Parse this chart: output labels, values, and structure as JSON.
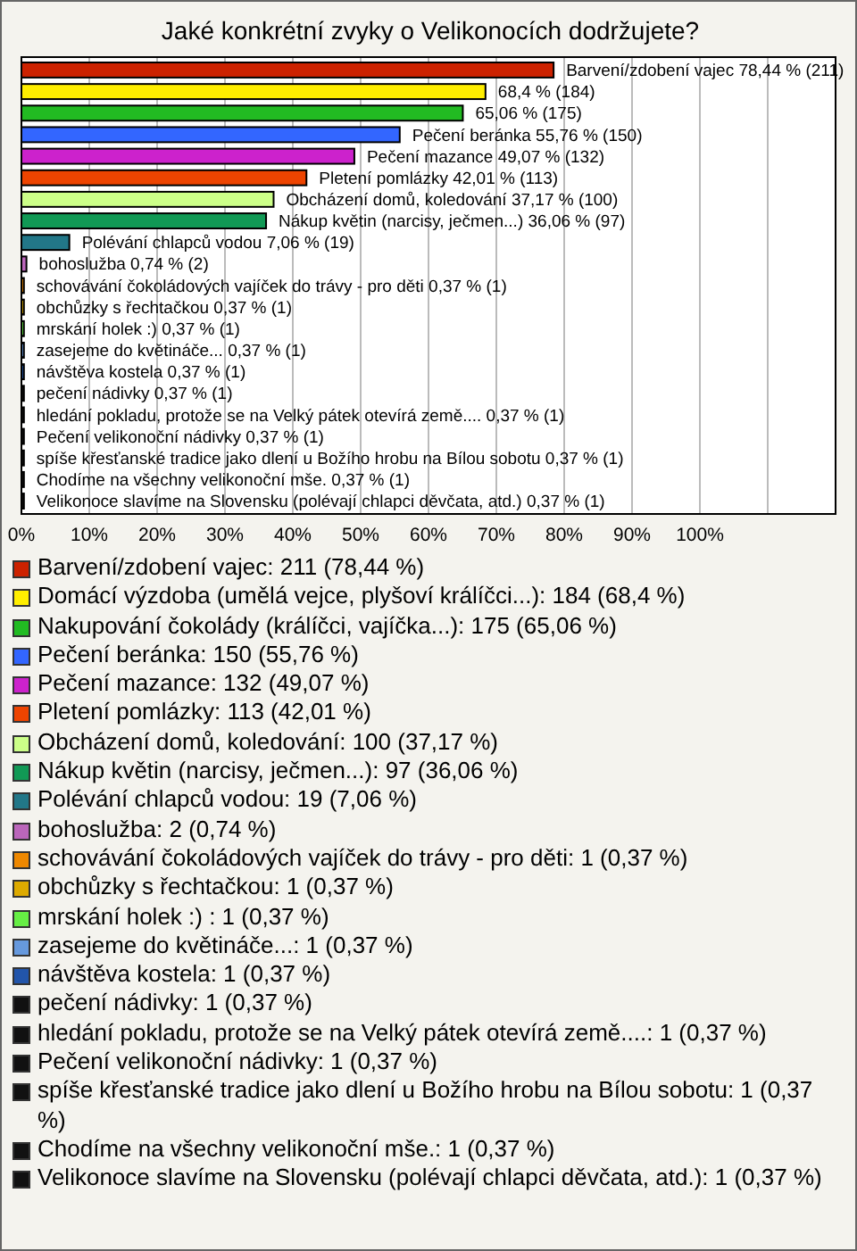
{
  "chart_data": {
    "type": "bar",
    "orientation": "horizontal",
    "title": "Jaké konkrétní zvyky o Velikonocích dodržujete?",
    "categories": [
      null,
      null,
      null,
      null,
      null,
      null,
      null,
      null,
      null,
      null,
      null,
      null,
      null,
      null,
      null,
      null,
      null,
      null,
      null,
      null,
      null
    ],
    "series": [
      {
        "name": "Barvení/zdobení vajec: 211 (78,44 %)",
        "color": "#cc2200",
        "values": [
          78.44,
          null,
          null,
          null,
          null,
          null,
          null,
          null,
          null,
          null,
          null,
          null,
          null,
          null,
          null,
          null,
          null,
          null,
          null,
          null,
          null
        ],
        "value_labels": [
          "Barvení/zdobení vajec 78,44 % (211)",
          null,
          null,
          null,
          null,
          null,
          null,
          null,
          null,
          null,
          null,
          null,
          null,
          null,
          null,
          null,
          null,
          null,
          null,
          null,
          null
        ]
      },
      {
        "name": "Domácí výzdoba (umělá vejce, plyšoví králíčci...): 184 (68,4 %)",
        "color": "#ffee00",
        "values": [
          null,
          68.4,
          null,
          null,
          null,
          null,
          null,
          null,
          null,
          null,
          null,
          null,
          null,
          null,
          null,
          null,
          null,
          null,
          null,
          null,
          null
        ],
        "value_labels": [
          null,
          "68,4 % (184)",
          null,
          null,
          null,
          null,
          null,
          null,
          null,
          null,
          null,
          null,
          null,
          null,
          null,
          null,
          null,
          null,
          null,
          null,
          null
        ]
      },
      {
        "name": "Nakupování čokolády (králíčci, vajíčka...): 175 (65,06 %)",
        "color": "#22bb22",
        "values": [
          null,
          null,
          65.06,
          null,
          null,
          null,
          null,
          null,
          null,
          null,
          null,
          null,
          null,
          null,
          null,
          null,
          null,
          null,
          null,
          null,
          null
        ],
        "value_labels": [
          null,
          null,
          "65,06 % (175)",
          null,
          null,
          null,
          null,
          null,
          null,
          null,
          null,
          null,
          null,
          null,
          null,
          null,
          null,
          null,
          null,
          null,
          null
        ]
      },
      {
        "name": "Pečení beránka: 150 (55,76 %)",
        "color": "#3366ff",
        "values": [
          null,
          null,
          null,
          55.76,
          null,
          null,
          null,
          null,
          null,
          null,
          null,
          null,
          null,
          null,
          null,
          null,
          null,
          null,
          null,
          null,
          null
        ],
        "value_labels": [
          null,
          null,
          null,
          "Pečení beránka 55,76 % (150)",
          null,
          null,
          null,
          null,
          null,
          null,
          null,
          null,
          null,
          null,
          null,
          null,
          null,
          null,
          null,
          null,
          null
        ]
      },
      {
        "name": "Pečení mazance: 132 (49,07 %)",
        "color": "#cc22cc",
        "values": [
          null,
          null,
          null,
          null,
          49.07,
          null,
          null,
          null,
          null,
          null,
          null,
          null,
          null,
          null,
          null,
          null,
          null,
          null,
          null,
          null,
          null
        ],
        "value_labels": [
          null,
          null,
          null,
          null,
          "Pečení mazance 49,07 % (132)",
          null,
          null,
          null,
          null,
          null,
          null,
          null,
          null,
          null,
          null,
          null,
          null,
          null,
          null,
          null,
          null
        ]
      },
      {
        "name": "Pletení pomlázky: 113 (42,01 %)",
        "color": "#ee4400",
        "values": [
          null,
          null,
          null,
          null,
          null,
          42.01,
          null,
          null,
          null,
          null,
          null,
          null,
          null,
          null,
          null,
          null,
          null,
          null,
          null,
          null,
          null
        ],
        "value_labels": [
          null,
          null,
          null,
          null,
          null,
          "Pletení pomlázky 42,01 % (113)",
          null,
          null,
          null,
          null,
          null,
          null,
          null,
          null,
          null,
          null,
          null,
          null,
          null,
          null,
          null
        ]
      },
      {
        "name": "Obcházení domů, koledování: 100 (37,17 %)",
        "color": "#ccff88",
        "values": [
          null,
          null,
          null,
          null,
          null,
          null,
          37.17,
          null,
          null,
          null,
          null,
          null,
          null,
          null,
          null,
          null,
          null,
          null,
          null,
          null,
          null
        ],
        "value_labels": [
          null,
          null,
          null,
          null,
          null,
          null,
          "Obcházení domů, koledování 37,17 % (100)",
          null,
          null,
          null,
          null,
          null,
          null,
          null,
          null,
          null,
          null,
          null,
          null,
          null,
          null
        ]
      },
      {
        "name": "Nákup květin (narcisy, ječmen...): 97 (36,06 %)",
        "color": "#119955",
        "values": [
          null,
          null,
          null,
          null,
          null,
          null,
          null,
          36.06,
          null,
          null,
          null,
          null,
          null,
          null,
          null,
          null,
          null,
          null,
          null,
          null,
          null
        ],
        "value_labels": [
          null,
          null,
          null,
          null,
          null,
          null,
          null,
          "Nákup květin (narcisy, ječmen...) 36,06 % (97)",
          null,
          null,
          null,
          null,
          null,
          null,
          null,
          null,
          null,
          null,
          null,
          null,
          null
        ]
      },
      {
        "name": "Polévání chlapců vodou: 19 (7,06 %)",
        "color": "#227788",
        "values": [
          null,
          null,
          null,
          null,
          null,
          null,
          null,
          null,
          7.06,
          null,
          null,
          null,
          null,
          null,
          null,
          null,
          null,
          null,
          null,
          null,
          null
        ],
        "value_labels": [
          null,
          null,
          null,
          null,
          null,
          null,
          null,
          null,
          "Polévání chlapců vodou 7,06 % (19)",
          null,
          null,
          null,
          null,
          null,
          null,
          null,
          null,
          null,
          null,
          null,
          null
        ]
      },
      {
        "name": "bohoslužba: 2 (0,74 %)",
        "color": "#bb66bb",
        "values": [
          null,
          null,
          null,
          null,
          null,
          null,
          null,
          null,
          null,
          0.74,
          null,
          null,
          null,
          null,
          null,
          null,
          null,
          null,
          null,
          null,
          null
        ],
        "value_labels": [
          null,
          null,
          null,
          null,
          null,
          null,
          null,
          null,
          null,
          "bohoslužba 0,74 % (2)",
          null,
          null,
          null,
          null,
          null,
          null,
          null,
          null,
          null,
          null,
          null
        ]
      },
      {
        "name": "schovávání čokoládových vajíček do trávy - pro děti: 1 (0,37 %)",
        "color": "#ee8800",
        "values": [
          null,
          null,
          null,
          null,
          null,
          null,
          null,
          null,
          null,
          null,
          0.37,
          null,
          null,
          null,
          null,
          null,
          null,
          null,
          null,
          null,
          null
        ],
        "value_labels": [
          null,
          null,
          null,
          null,
          null,
          null,
          null,
          null,
          null,
          null,
          "schovávání čokoládových vajíček do trávy - pro děti 0,37 % (1)",
          null,
          null,
          null,
          null,
          null,
          null,
          null,
          null,
          null,
          null
        ]
      },
      {
        "name": "obchůzky s řechtačkou: 1 (0,37 %)",
        "color": "#ddaa00",
        "values": [
          null,
          null,
          null,
          null,
          null,
          null,
          null,
          null,
          null,
          null,
          null,
          0.37,
          null,
          null,
          null,
          null,
          null,
          null,
          null,
          null,
          null
        ],
        "value_labels": [
          null,
          null,
          null,
          null,
          null,
          null,
          null,
          null,
          null,
          null,
          null,
          "obchůzky s řechtačkou 0,37 % (1)",
          null,
          null,
          null,
          null,
          null,
          null,
          null,
          null,
          null
        ]
      },
      {
        "name": "mrskání holek :) : 1 (0,37 %)",
        "color": "#66ee44",
        "values": [
          null,
          null,
          null,
          null,
          null,
          null,
          null,
          null,
          null,
          null,
          null,
          null,
          0.37,
          null,
          null,
          null,
          null,
          null,
          null,
          null,
          null
        ],
        "value_labels": [
          null,
          null,
          null,
          null,
          null,
          null,
          null,
          null,
          null,
          null,
          null,
          null,
          "mrskání holek :)  0,37 % (1)",
          null,
          null,
          null,
          null,
          null,
          null,
          null,
          null
        ]
      },
      {
        "name": "zasejeme do květináče...: 1 (0,37 %)",
        "color": "#6699dd",
        "values": [
          null,
          null,
          null,
          null,
          null,
          null,
          null,
          null,
          null,
          null,
          null,
          null,
          null,
          0.37,
          null,
          null,
          null,
          null,
          null,
          null,
          null
        ],
        "value_labels": [
          null,
          null,
          null,
          null,
          null,
          null,
          null,
          null,
          null,
          null,
          null,
          null,
          null,
          "zasejeme do květináče... 0,37 % (1)",
          null,
          null,
          null,
          null,
          null,
          null,
          null
        ]
      },
      {
        "name": "návštěva kostela: 1 (0,37 %)",
        "color": "#2255aa",
        "values": [
          null,
          null,
          null,
          null,
          null,
          null,
          null,
          null,
          null,
          null,
          null,
          null,
          null,
          null,
          0.37,
          null,
          null,
          null,
          null,
          null,
          null
        ],
        "value_labels": [
          null,
          null,
          null,
          null,
          null,
          null,
          null,
          null,
          null,
          null,
          null,
          null,
          null,
          null,
          "návštěva kostela 0,37 % (1)",
          null,
          null,
          null,
          null,
          null,
          null
        ]
      },
      {
        "name": "pečení nádivky: 1 (0,37 %)",
        "color": "#111111",
        "values": [
          null,
          null,
          null,
          null,
          null,
          null,
          null,
          null,
          null,
          null,
          null,
          null,
          null,
          null,
          null,
          0.37,
          null,
          null,
          null,
          null,
          null
        ],
        "value_labels": [
          null,
          null,
          null,
          null,
          null,
          null,
          null,
          null,
          null,
          null,
          null,
          null,
          null,
          null,
          null,
          "pečení nádivky 0,37 % (1)",
          null,
          null,
          null,
          null,
          null
        ]
      },
      {
        "name": "hledání pokladu, protože se na Velký pátek otevírá země....: 1 (0,37 %)",
        "color": "#111111",
        "values": [
          null,
          null,
          null,
          null,
          null,
          null,
          null,
          null,
          null,
          null,
          null,
          null,
          null,
          null,
          null,
          null,
          0.37,
          null,
          null,
          null,
          null
        ],
        "value_labels": [
          null,
          null,
          null,
          null,
          null,
          null,
          null,
          null,
          null,
          null,
          null,
          null,
          null,
          null,
          null,
          null,
          "hledání pokladu, protože se na Velký pátek otevírá země.... 0,37 % (1)",
          null,
          null,
          null,
          null
        ]
      },
      {
        "name": "Pečení velikonoční nádivky: 1 (0,37 %)",
        "color": "#111111",
        "values": [
          null,
          null,
          null,
          null,
          null,
          null,
          null,
          null,
          null,
          null,
          null,
          null,
          null,
          null,
          null,
          null,
          null,
          0.37,
          null,
          null,
          null
        ],
        "value_labels": [
          null,
          null,
          null,
          null,
          null,
          null,
          null,
          null,
          null,
          null,
          null,
          null,
          null,
          null,
          null,
          null,
          null,
          "Pečení velikonoční nádivky 0,37 % (1)",
          null,
          null,
          null
        ]
      },
      {
        "name": "spíše křesťanské tradice jako dlení u Božího hrobu na Bílou sobotu: 1 (0,37 %)",
        "color": "#111111",
        "values": [
          null,
          null,
          null,
          null,
          null,
          null,
          null,
          null,
          null,
          null,
          null,
          null,
          null,
          null,
          null,
          null,
          null,
          null,
          0.37,
          null,
          null
        ],
        "value_labels": [
          null,
          null,
          null,
          null,
          null,
          null,
          null,
          null,
          null,
          null,
          null,
          null,
          null,
          null,
          null,
          null,
          null,
          null,
          "spíše křesťanské tradice jako dlení u Božího hrobu na Bílou sobotu 0,37 % (1)",
          null,
          null
        ]
      },
      {
        "name": "Chodíme na všechny velikonoční mše.: 1 (0,37 %)",
        "color": "#111111",
        "values": [
          null,
          null,
          null,
          null,
          null,
          null,
          null,
          null,
          null,
          null,
          null,
          null,
          null,
          null,
          null,
          null,
          null,
          null,
          null,
          0.37,
          null
        ],
        "value_labels": [
          null,
          null,
          null,
          null,
          null,
          null,
          null,
          null,
          null,
          null,
          null,
          null,
          null,
          null,
          null,
          null,
          null,
          null,
          null,
          "Chodíme na všechny velikonoční mše. 0,37 % (1)",
          null
        ]
      },
      {
        "name": "Velikonoce slavíme na Slovensku (polévají chlapci děvčata, atd.): 1 (0,37 %)",
        "color": "#111111",
        "values": [
          null,
          null,
          null,
          null,
          null,
          null,
          null,
          null,
          null,
          null,
          null,
          null,
          null,
          null,
          null,
          null,
          null,
          null,
          null,
          null,
          0.37
        ],
        "value_labels": [
          null,
          null,
          null,
          null,
          null,
          null,
          null,
          null,
          null,
          null,
          null,
          null,
          null,
          null,
          null,
          null,
          null,
          null,
          null,
          null,
          "Velikonoce slavíme na Slovensku (polévají chlapci děvčata, atd.) 0,37 % (1)"
        ]
      }
    ],
    "xlim": [
      0,
      120
    ],
    "xticks": [
      {
        "value": 0,
        "label": "0%"
      },
      {
        "value": 10,
        "label": "10%"
      },
      {
        "value": 20,
        "label": "20%"
      },
      {
        "value": 30,
        "label": "30%"
      },
      {
        "value": 40,
        "label": "40%"
      },
      {
        "value": 50,
        "label": "50%"
      },
      {
        "value": 60,
        "label": "60%"
      },
      {
        "value": 70,
        "label": "70%"
      },
      {
        "value": 80,
        "label": "80%"
      },
      {
        "value": 90,
        "label": "90%"
      },
      {
        "value": 100,
        "label": "100%"
      },
      {
        "value": 110,
        "label": null
      }
    ],
    "grid": "x",
    "legend": "bottom",
    "tick_labels": "x"
  }
}
